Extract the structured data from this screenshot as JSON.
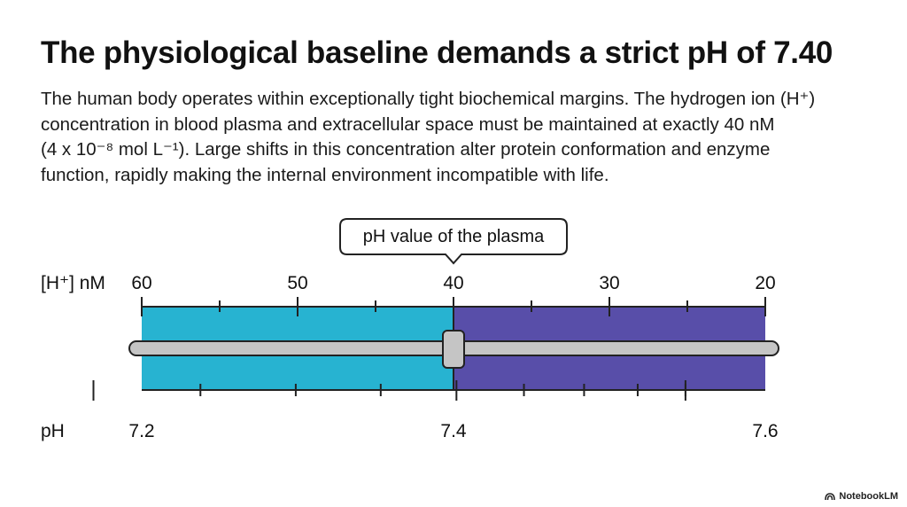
{
  "title": "The physiological baseline demands a strict pH of 7.40",
  "paragraph": {
    "line1": "The human body operates within exceptionally tight biochemical margins. The hydrogen ion (H⁺)",
    "line2": "concentration in blood plasma and extracellular space must be maintained at exactly 40 nM",
    "line3": "(4 x 10⁻⁸ mol L⁻¹). Large shifts in this concentration alter protein conformation and enzyme",
    "line4": "function, rapidly making the internal environment incompatible with life."
  },
  "callout": "pH value of the plasma",
  "top_scale": {
    "label": "[H⁺] nM",
    "ticks": [
      "60",
      "50",
      "40",
      "30",
      "20"
    ]
  },
  "bottom_scale": {
    "label": "pH",
    "ticks": [
      "7.2",
      "7.4",
      "7.6"
    ]
  },
  "colors": {
    "acid_region": "#27b3d1",
    "alkaline_region": "#584ea9",
    "slider_track": "#c5c5c5",
    "outline": "#222222"
  },
  "slider_value_ph": 7.4,
  "watermark": "NotebookLM"
}
